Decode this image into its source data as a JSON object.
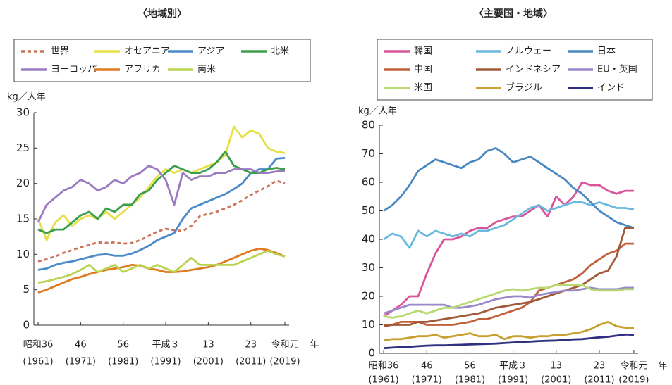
{
  "chart_data": [
    {
      "type": "line",
      "title": "〈地域別〉",
      "ylabel": "kg／人年",
      "xlabel": "年",
      "x": [
        1961,
        1963,
        1965,
        1967,
        1969,
        1971,
        1973,
        1975,
        1977,
        1979,
        1981,
        1983,
        1985,
        1987,
        1989,
        1991,
        1993,
        1995,
        1997,
        1999,
        2001,
        2003,
        2005,
        2007,
        2009,
        2011,
        2013,
        2015,
        2017,
        2019
      ],
      "xlim": [
        1960,
        2020
      ],
      "xticks": [
        {
          "value": 1961,
          "label": "昭和36",
          "year_label": "(1961)"
        },
        {
          "value": 1971,
          "label": "46",
          "year_label": "(1971)"
        },
        {
          "value": 1981,
          "label": "56",
          "year_label": "(1981)"
        },
        {
          "value": 1991,
          "label": "平成３",
          "year_label": "(1991)"
        },
        {
          "value": 2001,
          "label": "13",
          "year_label": "(2001)"
        },
        {
          "value": 2011,
          "label": "23",
          "year_label": "(2011)"
        },
        {
          "value": 2019,
          "label": "令和元",
          "year_label": "(2019)"
        }
      ],
      "ylim": [
        0,
        30
      ],
      "yticks": [
        0,
        5,
        10,
        15,
        20,
        25,
        30
      ],
      "series": [
        {
          "name": "世界",
          "color": "#c9735a",
          "dash": true,
          "values": [
            9.0,
            9.3,
            9.7,
            10.2,
            10.6,
            11.0,
            11.3,
            11.7,
            11.6,
            11.7,
            11.5,
            11.6,
            12.0,
            12.6,
            13.2,
            13.6,
            13.4,
            13.3,
            14.0,
            15.4,
            15.7,
            16.0,
            16.5,
            17.0,
            17.6,
            18.4,
            19.0,
            19.6,
            20.4,
            20.0
          ]
        },
        {
          "name": "オセアニア",
          "color": "#e6df45",
          "values": [
            15,
            12,
            14.5,
            15.5,
            14,
            15,
            15.5,
            15,
            16,
            15,
            16,
            17,
            18,
            19.5,
            21,
            22,
            21.5,
            22,
            21.5,
            22,
            22.5,
            23,
            24,
            28,
            26.5,
            27.5,
            27,
            25,
            24.5,
            24.3
          ]
        },
        {
          "name": "アジア",
          "color": "#4a8ac8",
          "values": [
            7.8,
            8.0,
            8.5,
            8.8,
            9.0,
            9.3,
            9.6,
            9.9,
            10.0,
            9.8,
            9.8,
            10.1,
            10.6,
            11.2,
            12.0,
            12.5,
            13,
            15,
            16.5,
            17,
            17.5,
            18,
            18.5,
            19.2,
            20,
            21.5,
            22,
            22,
            23.5,
            23.6
          ]
        },
        {
          "name": "北米",
          "color": "#3a9e4a",
          "values": [
            13.5,
            13,
            13.5,
            13.5,
            14.5,
            15.5,
            16,
            15,
            16.5,
            16,
            17,
            17,
            18.5,
            19,
            20.5,
            21.5,
            22.5,
            22,
            21.5,
            21.5,
            22,
            23,
            24.5,
            22.5,
            22,
            21.5,
            21.5,
            22,
            22.2,
            22
          ]
        },
        {
          "name": "ヨーロッパ",
          "color": "#9a7bc0",
          "values": [
            14.5,
            17,
            18,
            19,
            19.5,
            20.5,
            20,
            19,
            19.5,
            20.5,
            20,
            21,
            21.5,
            22.5,
            22,
            20.5,
            17,
            21.5,
            20.5,
            21,
            21,
            21.5,
            21.5,
            22,
            22,
            22,
            21.5,
            21.5,
            21.7,
            21.8
          ]
        },
        {
          "name": "アフリカ",
          "color": "#e07a20",
          "values": [
            4.6,
            5,
            5.5,
            6,
            6.5,
            6.8,
            7.2,
            7.5,
            7.8,
            8,
            8.2,
            8.5,
            8.4,
            8,
            7.8,
            7.5,
            7.5,
            7.6,
            7.8,
            8.0,
            8.2,
            8.5,
            9,
            9.5,
            10,
            10.5,
            10.8,
            10.6,
            10.2,
            9.7
          ]
        },
        {
          "name": "南米",
          "color": "#b8d450",
          "values": [
            6,
            6.2,
            6.5,
            6.8,
            7.2,
            7.8,
            8.5,
            7.5,
            8,
            8.5,
            7.5,
            8,
            8.5,
            8,
            8.5,
            8,
            7.5,
            8.5,
            9.5,
            8.5,
            8.5,
            8.5,
            8.5,
            8.5,
            9,
            9.5,
            10,
            10.5,
            10,
            9.7
          ]
        }
      ]
    },
    {
      "type": "line",
      "title": "〈主要国・地域〉",
      "ylabel": "kg／人年",
      "xlabel": "年",
      "x": [
        1961,
        1963,
        1965,
        1967,
        1969,
        1971,
        1973,
        1975,
        1977,
        1979,
        1981,
        1983,
        1985,
        1987,
        1989,
        1991,
        1993,
        1995,
        1997,
        1999,
        2001,
        2003,
        2005,
        2007,
        2009,
        2011,
        2013,
        2015,
        2017,
        2019
      ],
      "xlim": [
        1960,
        2020
      ],
      "xticks": [
        {
          "value": 1961,
          "label": "昭和36",
          "year_label": "(1961)"
        },
        {
          "value": 1971,
          "label": "46",
          "year_label": "(1971)"
        },
        {
          "value": 1981,
          "label": "56",
          "year_label": "(1981)"
        },
        {
          "value": 1991,
          "label": "平成３",
          "year_label": "(1991)"
        },
        {
          "value": 2001,
          "label": "13",
          "year_label": "(2001)"
        },
        {
          "value": 2011,
          "label": "23",
          "year_label": "(2011)"
        },
        {
          "value": 2019,
          "label": "令和元",
          "year_label": "(2019)"
        }
      ],
      "ylim": [
        0,
        80
      ],
      "yticks": [
        0,
        10,
        20,
        30,
        40,
        50,
        60,
        70,
        80
      ],
      "series": [
        {
          "name": "韓国",
          "color": "#d8559a",
          "values": [
            13,
            15,
            17,
            20,
            20,
            28,
            35,
            40,
            40,
            41,
            43,
            44,
            44,
            46,
            47,
            48,
            48,
            50,
            52,
            48,
            55,
            52,
            55,
            60,
            59,
            59,
            57,
            56,
            57,
            57
          ]
        },
        {
          "name": "ノルウェー",
          "color": "#6ab8e0",
          "values": [
            40,
            42,
            41,
            37,
            43,
            41,
            43,
            42,
            41,
            42,
            41,
            43,
            43,
            44,
            45,
            47,
            49,
            51,
            52,
            50,
            51,
            52,
            53,
            53,
            52,
            53,
            52,
            51,
            51,
            50.5
          ]
        },
        {
          "name": "日本",
          "color": "#4a88c0",
          "values": [
            50,
            52,
            55,
            59,
            64,
            66,
            68,
            67,
            66,
            65,
            67,
            68,
            71,
            72,
            70,
            67,
            68,
            69,
            67,
            65,
            63,
            61,
            58,
            56,
            53,
            50,
            48,
            46,
            45,
            44
          ]
        },
        {
          "name": "中国",
          "color": "#c0603a",
          "values": [
            10,
            10,
            11,
            11,
            11,
            10,
            10,
            10,
            10,
            10.5,
            11,
            12,
            12,
            13,
            14,
            15,
            16,
            18,
            22,
            23,
            24,
            25,
            26,
            28,
            31,
            33,
            35,
            36,
            38.5,
            38.5
          ]
        },
        {
          "name": "インドネシア",
          "color": "#a05a3a",
          "values": [
            9.5,
            10,
            10,
            10,
            11,
            11,
            11.5,
            12,
            12.5,
            13,
            13.5,
            14,
            15,
            16,
            16.5,
            17,
            17.5,
            18,
            19,
            20,
            21,
            22,
            23,
            24,
            26,
            28,
            29,
            34,
            44,
            44
          ]
        },
        {
          "name": "EU・英国",
          "color": "#9a88c8",
          "values": [
            14,
            15,
            16,
            17,
            17,
            17,
            17,
            17,
            16,
            16,
            16.5,
            17,
            18,
            19,
            19.5,
            20,
            20,
            19.5,
            20.5,
            21,
            21.5,
            22,
            22,
            22.5,
            23,
            22.5,
            22.5,
            22.5,
            23,
            23
          ]
        },
        {
          "name": "米国",
          "color": "#b8d870",
          "values": [
            13,
            12.5,
            13,
            14,
            15,
            14,
            15,
            16,
            16,
            17,
            18,
            19,
            20,
            21,
            22,
            22.5,
            22,
            22.5,
            23,
            23,
            24,
            24,
            24,
            24,
            22.5,
            22,
            22,
            22,
            22.5,
            22.5
          ]
        },
        {
          "name": "ブラジル",
          "color": "#c8a030",
          "values": [
            4.5,
            5,
            5,
            5.5,
            6,
            6,
            6.5,
            5.5,
            6,
            6.5,
            7,
            6,
            6,
            6.5,
            5,
            6,
            6,
            5.5,
            6,
            6,
            6.5,
            6.5,
            7,
            7.5,
            8.5,
            10,
            11,
            9.5,
            9,
            9
          ]
        },
        {
          "name": "インド",
          "color": "#303080",
          "values": [
            1.8,
            2,
            2.2,
            2.3,
            2.5,
            2.7,
            2.8,
            2.8,
            2.9,
            3,
            3.1,
            3.2,
            3.3,
            3.4,
            3.6,
            3.8,
            4,
            4.1,
            4.3,
            4.4,
            4.5,
            4.7,
            4.9,
            5,
            5.3,
            5.6,
            5.8,
            6.2,
            6.6,
            6.5
          ]
        }
      ]
    }
  ]
}
